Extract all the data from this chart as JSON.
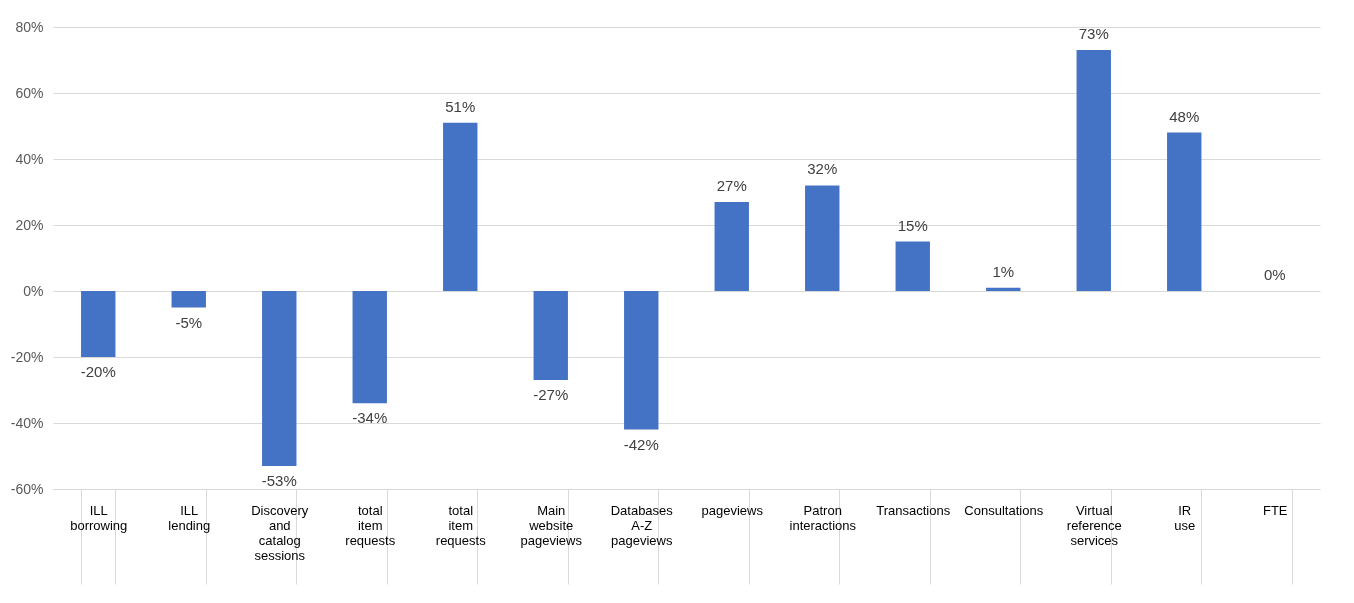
{
  "chart_data": {
    "type": "bar",
    "categories": [
      "ILL borrowing",
      "ILL lending",
      "Discovery and catalog sessions",
      "total item requests",
      "total item requests",
      "Main website pageviews",
      "Databases A-Z pageviews",
      "pageviews",
      "Patron interactions",
      "Transactions",
      "Consultations",
      "Virtual reference services",
      "IR use",
      "FTE"
    ],
    "values": [
      -20,
      -5,
      -53,
      -34,
      51,
      -27,
      -42,
      27,
      32,
      15,
      1,
      73,
      48,
      0
    ],
    "value_labels": [
      "-20%",
      "-5%",
      "-53%",
      "-34%",
      "51%",
      "-27%",
      "-42%",
      "27%",
      "32%",
      "15%",
      "1%",
      "73%",
      "48%",
      "0%"
    ],
    "color": "#4472c4",
    "ylim": [
      -60,
      80
    ],
    "yticks": [
      {
        "value": -60,
        "label": "-60%"
      },
      {
        "value": -40,
        "label": "-40%"
      },
      {
        "value": -20,
        "label": "-20%"
      },
      {
        "value": 0,
        "label": "0%"
      },
      {
        "value": 20,
        "label": "20%"
      },
      {
        "value": 40,
        "label": "40%"
      },
      {
        "value": 60,
        "label": "60%"
      },
      {
        "value": 80,
        "label": "80%"
      }
    ],
    "grid": "y"
  }
}
